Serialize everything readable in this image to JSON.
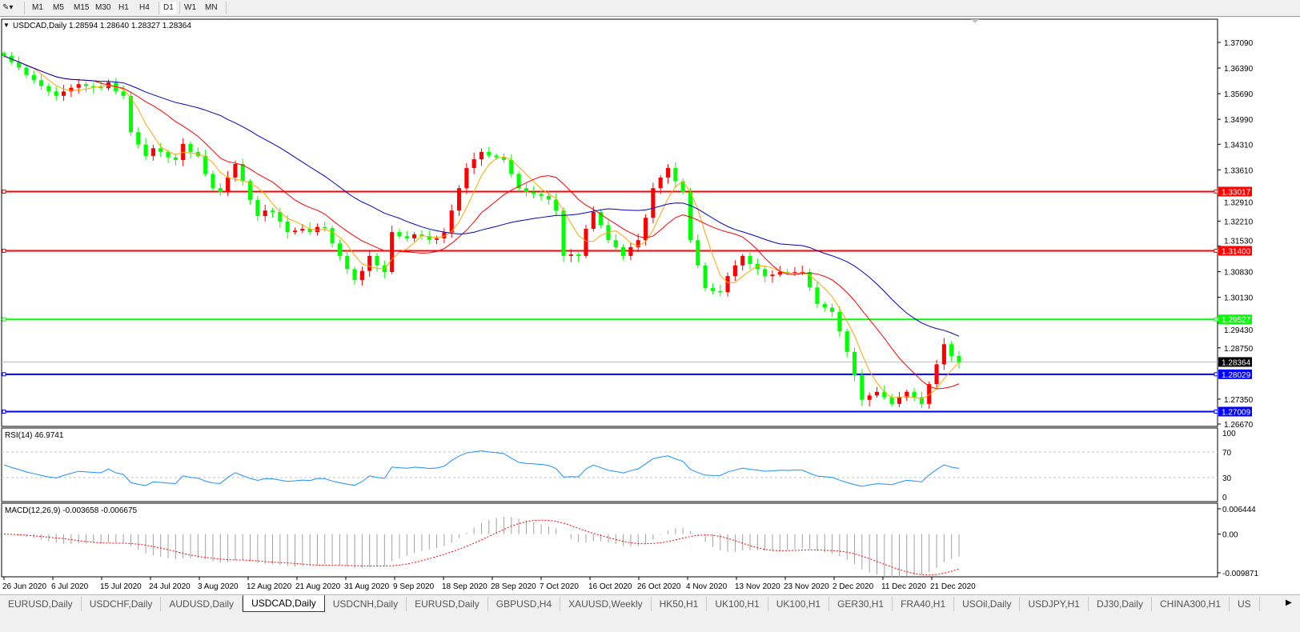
{
  "toolbar": {
    "timeframes": [
      "M1",
      "M5",
      "M15",
      "M30",
      "H1",
      "H4",
      "D1",
      "W1",
      "MN"
    ],
    "active": "D1"
  },
  "chart": {
    "header": "USDCAD,Daily  1.28594 1.28640 1.28327 1.28364",
    "price_axis": [
      "1.37090",
      "1.36390",
      "1.35690",
      "1.34990",
      "1.34310",
      "1.33610",
      "1.32910",
      "1.32210",
      "1.31530",
      "1.30830",
      "1.30130",
      "1.29430",
      "1.28750",
      "1.27350",
      "1.26670"
    ],
    "current_price": "1.28364",
    "hlines": [
      {
        "label": "1.33017",
        "color": "#ff0000"
      },
      {
        "label": "1.31400",
        "color": "#ff0000"
      },
      {
        "label": "1.29527",
        "color": "#00ff00"
      },
      {
        "label": "1.28029",
        "color": "#0000ff"
      },
      {
        "label": "1.27009",
        "color": "#0000ff"
      }
    ],
    "bull_color": "#ff0000",
    "bear_color": "#00ff00",
    "ma_colors": [
      "#ffa500",
      "#ff0000",
      "#0000c0"
    ],
    "dates": [
      "26 Jun 2020",
      "6 Jul 2020",
      "15 Jul 2020",
      "24 Jul 2020",
      "3 Aug 2020",
      "12 Aug 2020",
      "21 Aug 2020",
      "31 Aug 2020",
      "9 Sep 2020",
      "18 Sep 2020",
      "28 Sep 2020",
      "7 Oct 2020",
      "16 Oct 2020",
      "26 Oct 2020",
      "4 Nov 2020",
      "13 Nov 2020",
      "23 Nov 2020",
      "2 Dec 2020",
      "11 Dec 2020",
      "21 Dec 2020"
    ],
    "closes": [
      1.3672,
      1.3655,
      1.364,
      1.362,
      1.3606,
      1.359,
      1.3575,
      1.3563,
      1.3575,
      1.3585,
      1.3595,
      1.359,
      1.3587,
      1.3584,
      1.36,
      1.3575,
      1.3563,
      1.3464,
      1.343,
      1.3399,
      1.342,
      1.341,
      1.3395,
      1.3388,
      1.3432,
      1.341,
      1.3399,
      1.335,
      1.3311,
      1.33,
      1.334,
      1.3377,
      1.333,
      1.3279,
      1.3235,
      1.325,
      1.3246,
      1.322,
      1.3191,
      1.3195,
      1.32,
      1.3191,
      1.3205,
      1.3202,
      1.316,
      1.3126,
      1.309,
      1.306,
      1.3085,
      1.3126,
      1.31,
      1.3082,
      1.3191,
      1.318,
      1.3174,
      1.3185,
      1.318,
      1.317,
      1.3174,
      1.319,
      1.325,
      1.3311,
      1.3366,
      1.339,
      1.341,
      1.34,
      1.3395,
      1.3388,
      1.335,
      1.3311,
      1.33,
      1.3295,
      1.329,
      1.328,
      1.325,
      1.3126,
      1.313,
      1.3126,
      1.32,
      1.3246,
      1.321,
      1.3169,
      1.315,
      1.3126,
      1.315,
      1.3169,
      1.323,
      1.3311,
      1.334,
      1.3366,
      1.333,
      1.33,
      1.3169,
      1.31,
      1.3038,
      1.303,
      1.3027,
      1.3071,
      1.31,
      1.3126,
      1.3104,
      1.309,
      1.3071,
      1.3075,
      1.3082,
      1.308,
      1.3082,
      1.3082,
      1.304,
      1.2995,
      1.2985,
      1.2973,
      1.292,
      1.2864,
      1.28,
      1.2733,
      1.2745,
      1.2755,
      1.274,
      1.2722,
      1.274,
      1.2755,
      1.274,
      1.2722,
      1.2776,
      1.283,
      1.2885,
      1.2853,
      1.2836
    ]
  },
  "rsi": {
    "label": "RSI(14) 46.9741",
    "levels": [
      "100",
      "70",
      "30",
      "0"
    ],
    "color": "#1e90ff"
  },
  "macd": {
    "label": "MACD(12,26,9) -0.003658 -0.006675",
    "axis": [
      "0.006444",
      "0.00",
      "-0.009871"
    ],
    "signal_color": "#ff0000",
    "hist_color": "#a0a0a0"
  },
  "tabs": [
    "EURUSD,Daily",
    "USDCHF,Daily",
    "AUDUSD,Daily",
    "USDCAD,Daily",
    "USDCNH,Daily",
    "EURUSD,Daily",
    "GBPUSD,H4",
    "XAUUSD,Weekly",
    "HK50,H1",
    "UK100,H1",
    "UK100,H1",
    "GER30,H1",
    "FRA40,H1",
    "USOil,Daily",
    "USDJPY,H1",
    "DJ30,Daily",
    "CHINA300,H1",
    "US"
  ],
  "active_tab": "USDCAD,Daily"
}
